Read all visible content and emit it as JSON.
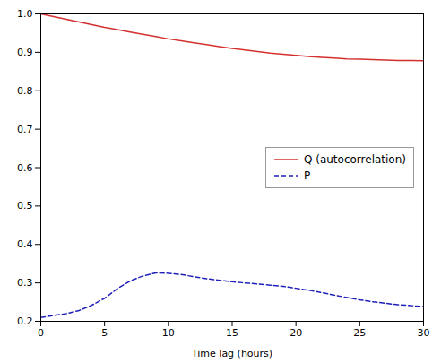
{
  "chart_data": {
    "type": "line",
    "xlabel": "Time lag (hours)",
    "x": [
      0,
      1,
      2,
      3,
      4,
      5,
      6,
      7,
      8,
      9,
      10,
      11,
      12,
      13,
      14,
      15,
      16,
      17,
      18,
      19,
      20,
      21,
      22,
      23,
      24,
      25,
      26,
      27,
      28,
      29,
      30
    ],
    "series": [
      {
        "name": "Q (autocorrelation)",
        "color": "#d43030",
        "line_style": "solid",
        "values": [
          1.0,
          0.993,
          0.986,
          0.979,
          0.972,
          0.965,
          0.959,
          0.953,
          0.947,
          0.941,
          0.935,
          0.93,
          0.925,
          0.92,
          0.915,
          0.91,
          0.906,
          0.902,
          0.898,
          0.895,
          0.892,
          0.889,
          0.887,
          0.885,
          0.883,
          0.882,
          0.881,
          0.88,
          0.879,
          0.879,
          0.878
        ]
      },
      {
        "name": "P",
        "color": "#2020bb",
        "line_style": "dashed",
        "values": [
          0.21,
          0.215,
          0.22,
          0.228,
          0.242,
          0.26,
          0.285,
          0.305,
          0.318,
          0.326,
          0.325,
          0.322,
          0.316,
          0.311,
          0.307,
          0.303,
          0.3,
          0.297,
          0.294,
          0.291,
          0.286,
          0.281,
          0.275,
          0.268,
          0.262,
          0.256,
          0.251,
          0.247,
          0.243,
          0.241,
          0.238
        ]
      }
    ],
    "xlim": [
      0,
      30
    ],
    "xticks": [
      0,
      5,
      10,
      15,
      20,
      25,
      30
    ],
    "ylim": [
      0.2,
      1.0
    ],
    "yticks": [
      0.2,
      0.3,
      0.4,
      0.5,
      0.6,
      0.7,
      0.8,
      0.9,
      {
        "value": 1.0,
        "label": "1.0"
      }
    ],
    "grid": false,
    "legend": "center right"
  }
}
